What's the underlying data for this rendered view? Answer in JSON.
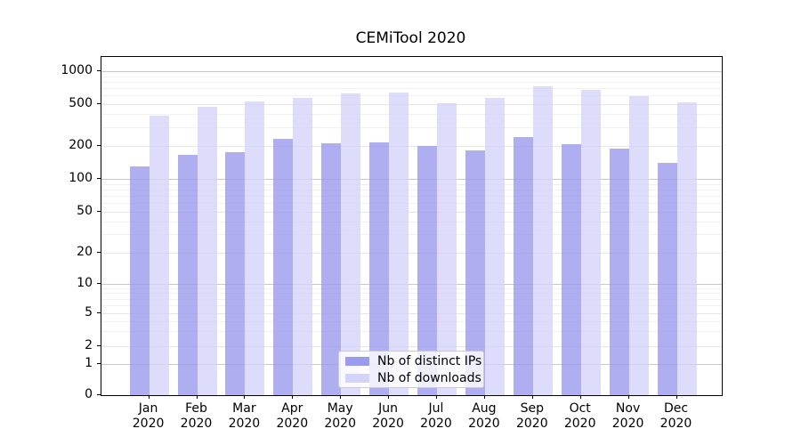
{
  "title": "CEMiTool 2020",
  "chart_data": {
    "type": "bar",
    "title": "CEMiTool 2020",
    "scale": "symlog",
    "grid": true,
    "legend_position": "inside-bottom-center",
    "months": [
      "Jan",
      "Feb",
      "Mar",
      "Apr",
      "May",
      "Jun",
      "Jul",
      "Aug",
      "Sep",
      "Oct",
      "Nov",
      "Dec"
    ],
    "year_label": "2020",
    "y_ticks": [
      0,
      1,
      2,
      5,
      10,
      20,
      50,
      100,
      200,
      500,
      1000
    ],
    "y_minor_ticks": [
      3,
      4,
      6,
      7,
      8,
      9,
      30,
      40,
      60,
      70,
      80,
      90,
      300,
      400,
      600,
      700,
      800,
      900
    ],
    "ylim": [
      0,
      1400
    ],
    "series": [
      {
        "name": "Nb of distinct IPs",
        "color": "#9a9aee",
        "values": [
          130,
          165,
          176,
          234,
          213,
          216,
          201,
          182,
          243,
          210,
          191,
          140
        ]
      },
      {
        "name": "Nb of downloads",
        "color": "#d4d4fa",
        "values": [
          385,
          472,
          525,
          570,
          628,
          640,
          514,
          570,
          732,
          670,
          590,
          515
        ]
      }
    ]
  },
  "colors": {
    "grid_major": "#c8c8c8",
    "grid_sub": "#e6e6e6",
    "grid_minor": "#f1f1f1",
    "spine": "#000000",
    "text": "#000000",
    "background": "#ffffff"
  }
}
